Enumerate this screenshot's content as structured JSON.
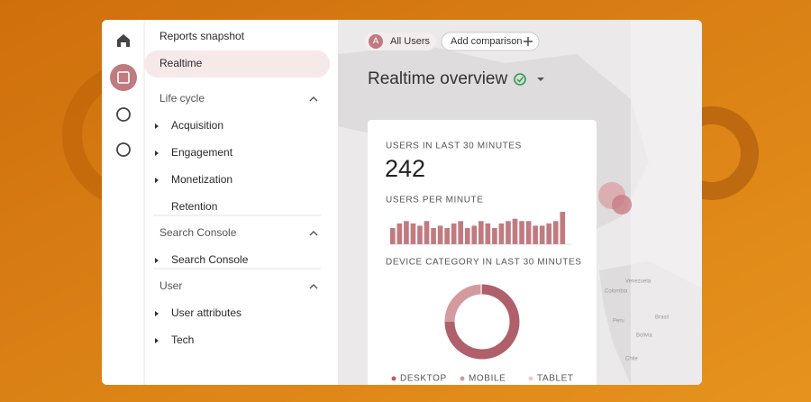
{
  "nav": {
    "top": [
      "Reports snapshot",
      "Realtime"
    ],
    "sections": [
      {
        "title": "Life cycle",
        "items": [
          "Acquisition",
          "Engagement",
          "Monetization",
          "Retention"
        ]
      },
      {
        "title": "Search Console",
        "items": [
          "Search Console"
        ]
      },
      {
        "title": "User",
        "items": [
          "User attributes",
          "Tech"
        ]
      }
    ]
  },
  "header": {
    "segment_badge": "A",
    "segment": "All Users",
    "add_comparison": "Add comparison"
  },
  "title": "Realtime overview",
  "card": {
    "users_label": "USERS IN LAST 30 MINUTES",
    "users_value": 242,
    "per_minute_label": "USERS PER MINUTE",
    "per_minute": {
      "type": "bar",
      "color": "#c07a80",
      "ylim": [
        0,
        14
      ],
      "values": [
        7,
        9,
        10,
        9,
        8,
        10,
        7,
        8,
        7,
        9,
        10,
        7,
        8,
        10,
        9,
        7,
        9,
        10,
        11,
        10,
        10,
        8,
        8,
        9,
        10,
        14
      ]
    },
    "device_label": "DEVICE CATEGORY IN LAST 30 MINUTES",
    "devices": {
      "type": "pie",
      "series": [
        {
          "name": "DESKTOP",
          "color": "#b0606a",
          "values": [
            75
          ]
        },
        {
          "name": "MOBILE",
          "color": "#d39aa0",
          "values": [
            24
          ]
        },
        {
          "name": "TABLET",
          "color": "#efc9cc",
          "values": [
            1
          ]
        }
      ]
    }
  },
  "map_labels": [
    "Venezuela",
    "Colombia",
    "Peru",
    "Brasil",
    "Bolivia",
    "Chile"
  ]
}
